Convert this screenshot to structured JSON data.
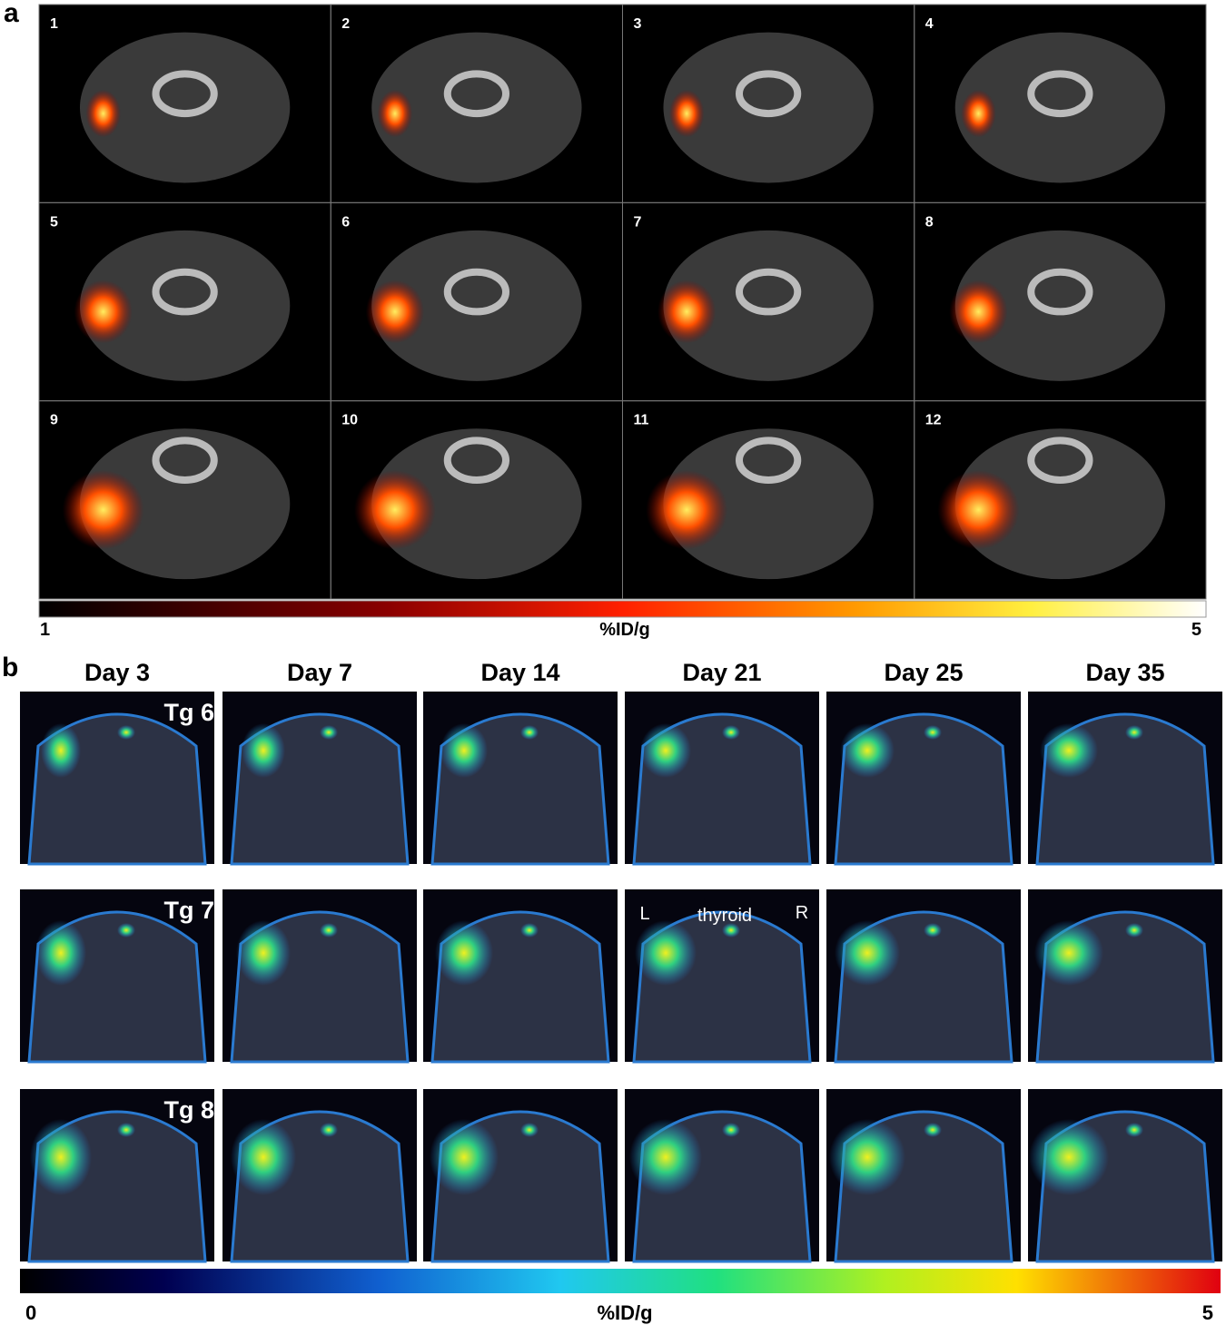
{
  "panel_a": {
    "label": "a",
    "slices": [
      "1",
      "2",
      "3",
      "4",
      "5",
      "6",
      "7",
      "8",
      "9",
      "10",
      "11",
      "12"
    ],
    "colorbar": {
      "min": "1",
      "unit": "%ID/g",
      "max": "5"
    }
  },
  "panel_b": {
    "label": "b",
    "days": [
      "Day 3",
      "Day 7",
      "Day 14",
      "Day 21",
      "Day 25",
      "Day 35"
    ],
    "rows": [
      "Tg 6",
      "Tg 7",
      "Tg 8"
    ],
    "annotations": {
      "left": "L",
      "organ": "thyroid",
      "right": "R"
    },
    "colorbar": {
      "min": "0",
      "unit": "%ID/g",
      "max": "5"
    }
  }
}
